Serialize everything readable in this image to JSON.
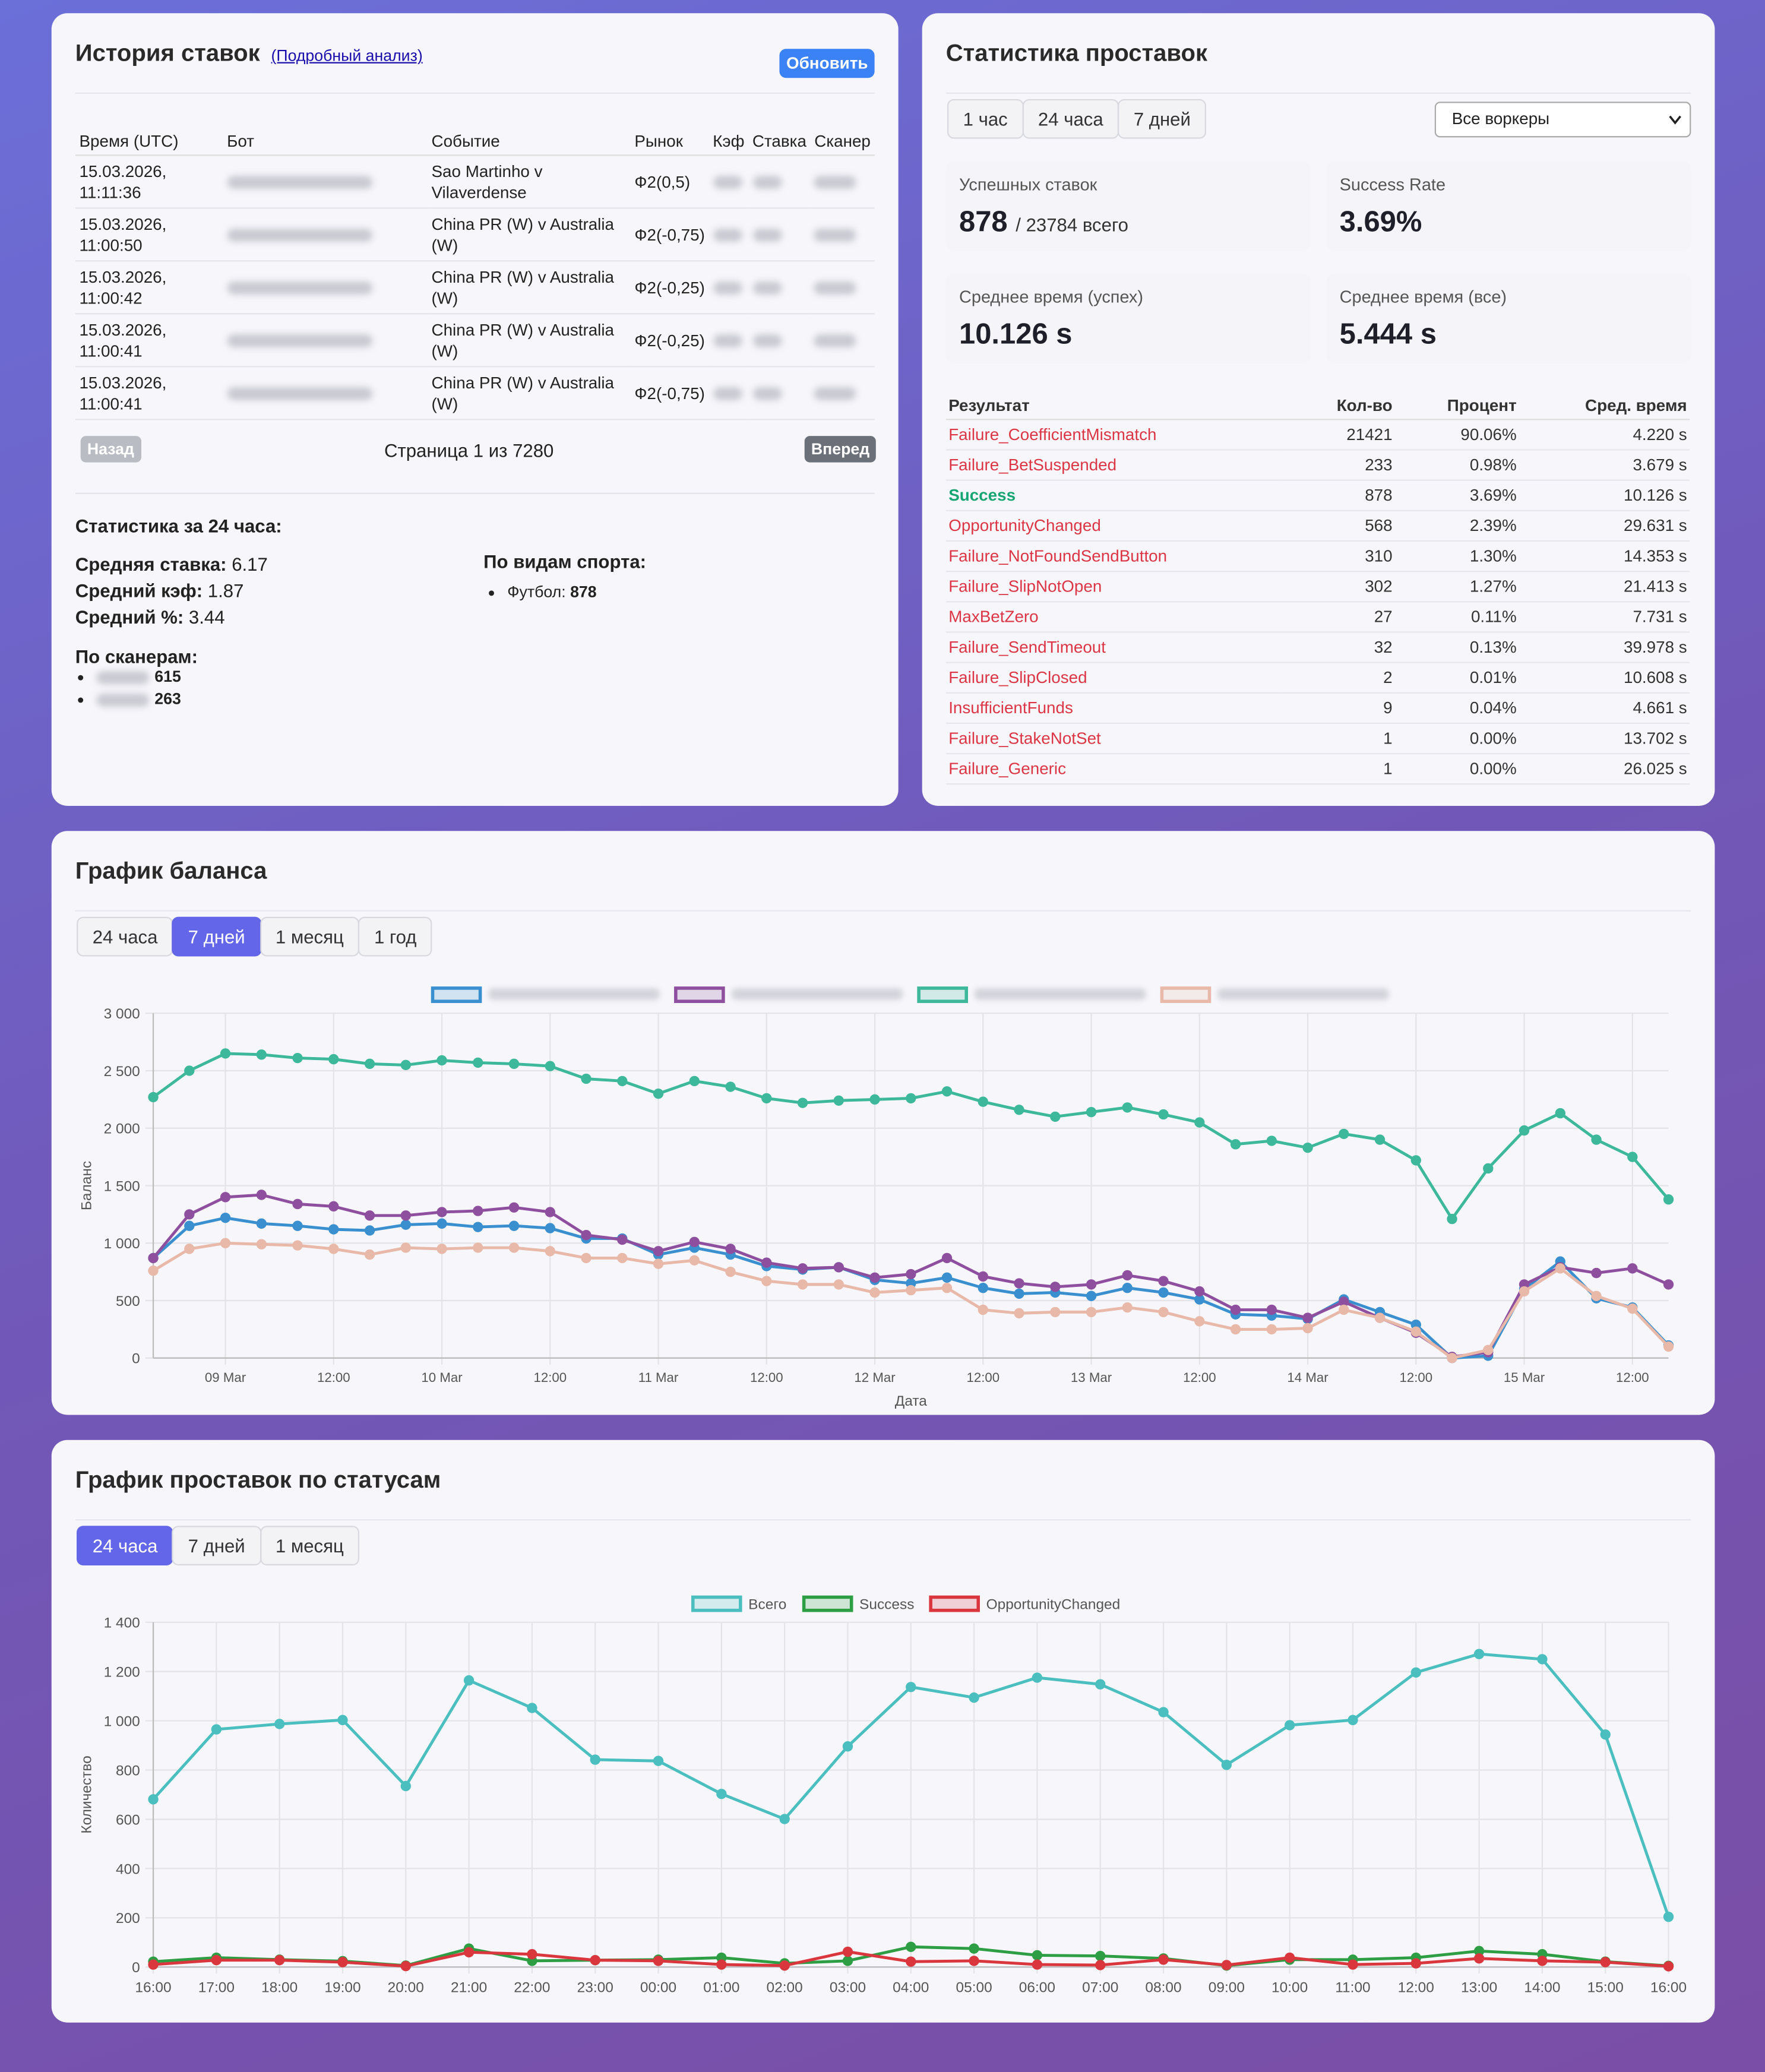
{
  "history": {
    "title": "История ставок",
    "link": "(Подробный анализ)",
    "refresh": "Обновить",
    "columns": [
      "Время (UTC)",
      "Бот",
      "Событие",
      "Рынок",
      "Кэф",
      "Ставка",
      "Сканер"
    ],
    "rows": [
      {
        "time": "15.03.2026, 11:11:36",
        "event": "Sao Martinho v Vilaverdense",
        "market": "Ф2(0,5)"
      },
      {
        "time": "15.03.2026, 11:00:50",
        "event": "China PR (W) v Australia (W)",
        "market": "Ф2(-0,75)"
      },
      {
        "time": "15.03.2026, 11:00:42",
        "event": "China PR (W) v Australia (W)",
        "market": "Ф2(-0,25)"
      },
      {
        "time": "15.03.2026, 11:00:41",
        "event": "China PR (W) v Australia (W)",
        "market": "Ф2(-0,25)"
      },
      {
        "time": "15.03.2026, 11:00:41",
        "event": "China PR (W) v Australia (W)",
        "market": "Ф2(-0,75)"
      }
    ],
    "prev": "Назад",
    "page": "Страница 1 из 7280",
    "next": "Вперед"
  },
  "stats24": {
    "title": "Статистика за 24 часа:",
    "avg_bet_label": "Средняя ставка:",
    "avg_bet": 6.17,
    "avg_coef_label": "Средний кэф:",
    "avg_coef": 1.87,
    "avg_pct_label": "Средний %:",
    "avg_pct": 3.44,
    "scanners_title": "По сканерам:",
    "scanners": [
      615,
      263
    ],
    "sports_title": "По видам спорта:",
    "sports": [
      {
        "name": "Футбол:",
        "count": 878
      }
    ]
  },
  "placement": {
    "title": "Статистика проставок",
    "periods": [
      "1 час",
      "24 часа",
      "7 дней"
    ],
    "worker_select": "Все воркеры",
    "cards": [
      {
        "label": "Успешных ставок",
        "value": 878,
        "sub": "/ 23784 всего"
      },
      {
        "label": "Success Rate",
        "value": "3.69%"
      },
      {
        "label": "Среднее время (успех)",
        "value": "10.126 s"
      },
      {
        "label": "Среднее время (все)",
        "value": "5.444 s"
      }
    ],
    "columns": [
      "Результат",
      "Кол-во",
      "Процент",
      "Сред. время"
    ],
    "rows": [
      {
        "name": "Failure_CoefficientMismatch",
        "count": 21421,
        "percent": "90.06%",
        "time": "4.220 s",
        "color": "#dc3545"
      },
      {
        "name": "Failure_BetSuspended",
        "count": 233,
        "percent": "0.98%",
        "time": "3.679 s",
        "color": "#dc3545"
      },
      {
        "name": "Success",
        "count": 878,
        "percent": "3.69%",
        "time": "10.126 s",
        "color": "#17a673",
        "bold": true
      },
      {
        "name": "OpportunityChanged",
        "count": 568,
        "percent": "2.39%",
        "time": "29.631 s",
        "color": "#dc3545"
      },
      {
        "name": "Failure_NotFoundSendButton",
        "count": 310,
        "percent": "1.30%",
        "time": "14.353 s",
        "color": "#dc3545"
      },
      {
        "name": "Failure_SlipNotOpen",
        "count": 302,
        "percent": "1.27%",
        "time": "21.413 s",
        "color": "#dc3545"
      },
      {
        "name": "MaxBetZero",
        "count": 27,
        "percent": "0.11%",
        "time": "7.731 s",
        "color": "#dc3545"
      },
      {
        "name": "Failure_SendTimeout",
        "count": 32,
        "percent": "0.13%",
        "time": "39.978 s",
        "color": "#dc3545"
      },
      {
        "name": "Failure_SlipClosed",
        "count": 2,
        "percent": "0.01%",
        "time": "10.608 s",
        "color": "#dc3545"
      },
      {
        "name": "InsufficientFunds",
        "count": 9,
        "percent": "0.04%",
        "time": "4.661 s",
        "color": "#dc3545"
      },
      {
        "name": "Failure_StakeNotSet",
        "count": 1,
        "percent": "0.00%",
        "time": "13.702 s",
        "color": "#dc3545"
      },
      {
        "name": "Failure_Generic",
        "count": 1,
        "percent": "0.00%",
        "time": "26.025 s",
        "color": "#dc3545"
      }
    ]
  },
  "chart_data": [
    {
      "type": "line",
      "title": "График баланса",
      "periods": [
        "24 часа",
        "7 дней",
        "1 месяц",
        "1 год"
      ],
      "active_period": 1,
      "x_label": "Дата",
      "y_label": "Баланс",
      "grid": true,
      "x": [
        "08 Mar 16:00",
        "08 Mar 20:00",
        "09 Mar 00:00",
        "09 Mar 04:00",
        "09 Mar 08:00",
        "09 Mar 12:00",
        "09 Mar 16:00",
        "09 Mar 20:00",
        "10 Mar 00:00",
        "10 Mar 04:00",
        "10 Mar 08:00",
        "10 Mar 12:00",
        "10 Mar 16:00",
        "10 Mar 20:00",
        "11 Mar 00:00",
        "11 Mar 04:00",
        "11 Mar 08:00",
        "11 Mar 12:00",
        "11 Mar 16:00",
        "11 Mar 20:00",
        "12 Mar 00:00",
        "12 Mar 04:00",
        "12 Mar 08:00",
        "12 Mar 12:00",
        "12 Mar 16:00",
        "12 Mar 20:00",
        "13 Mar 00:00",
        "13 Mar 04:00",
        "13 Mar 08:00",
        "13 Mar 12:00",
        "13 Mar 16:00",
        "13 Mar 20:00",
        "14 Mar 00:00",
        "14 Mar 04:00",
        "14 Mar 08:00",
        "14 Mar 12:00",
        "14 Mar 16:00",
        "14 Mar 20:00",
        "15 Mar 00:00",
        "15 Mar 04:00",
        "15 Mar 08:00",
        "15 Mar 12:00",
        "15 Mar 16:00"
      ],
      "xticks": [
        {
          "value": "09 Mar 00:00",
          "label": "09 Mar"
        },
        {
          "value": "09 Mar 12:00",
          "label": "12:00"
        },
        {
          "value": "10 Mar 00:00",
          "label": "10 Mar"
        },
        {
          "value": "10 Mar 12:00",
          "label": "12:00"
        },
        {
          "value": "11 Mar 00:00",
          "label": "11 Mar"
        },
        {
          "value": "11 Mar 12:00",
          "label": "12:00"
        },
        {
          "value": "12 Mar 00:00",
          "label": "12 Mar"
        },
        {
          "value": "12 Mar 12:00",
          "label": "12:00"
        },
        {
          "value": "13 Mar 00:00",
          "label": "13 Mar"
        },
        {
          "value": "13 Mar 12:00",
          "label": "12:00"
        },
        {
          "value": "14 Mar 00:00",
          "label": "14 Mar"
        },
        {
          "value": "14 Mar 12:00",
          "label": "12:00"
        },
        {
          "value": "15 Mar 00:00",
          "label": "15 Mar"
        },
        {
          "value": "15 Mar 12:00",
          "label": "12:00"
        }
      ],
      "ylim": [
        0,
        3000
      ],
      "yticks": [
        0,
        500,
        {
          "value": 1000,
          "label": "1 000"
        },
        {
          "value": 1500,
          "label": "1 500"
        },
        {
          "value": 2000,
          "label": "2 000"
        },
        {
          "value": 2500,
          "label": "2 500"
        },
        {
          "value": 3000,
          "label": "3 000"
        }
      ],
      "series": [
        {
          "color": "#3a8fcf",
          "values": [
            870,
            1150,
            1220,
            1170,
            1150,
            1120,
            1110,
            1160,
            1170,
            1140,
            1150,
            1130,
            1040,
            1040,
            900,
            960,
            900,
            800,
            770,
            790,
            680,
            650,
            700,
            610,
            560,
            570,
            540,
            610,
            570,
            510,
            380,
            370,
            340,
            510,
            400,
            290,
            0,
            20,
            600,
            840,
            520,
            440,
            110
          ]
        },
        {
          "color": "#8e4f9f",
          "values": [
            870,
            1250,
            1400,
            1420,
            1340,
            1320,
            1240,
            1240,
            1270,
            1280,
            1310,
            1270,
            1070,
            1030,
            930,
            1010,
            950,
            830,
            780,
            790,
            700,
            730,
            870,
            710,
            650,
            620,
            640,
            720,
            670,
            580,
            420,
            420,
            350,
            490,
            350,
            220,
            10,
            50,
            640,
            790,
            740,
            780,
            640
          ]
        },
        {
          "color": "#3db89a",
          "values": [
            2270,
            2500,
            2650,
            2640,
            2610,
            2600,
            2560,
            2550,
            2590,
            2570,
            2560,
            2540,
            2430,
            2410,
            2300,
            2410,
            2360,
            2260,
            2220,
            2240,
            2250,
            2260,
            2320,
            2230,
            2160,
            2100,
            2140,
            2180,
            2120,
            2050,
            1860,
            1890,
            1830,
            1950,
            1900,
            1720,
            1210,
            1650,
            1980,
            2130,
            1900,
            1750,
            1380
          ]
        },
        {
          "color": "#e8b8a8",
          "values": [
            760,
            950,
            1000,
            990,
            980,
            950,
            900,
            960,
            950,
            960,
            960,
            930,
            870,
            870,
            820,
            850,
            750,
            670,
            640,
            640,
            570,
            590,
            610,
            420,
            390,
            400,
            400,
            440,
            400,
            320,
            250,
            250,
            260,
            420,
            350,
            230,
            0,
            70,
            580,
            780,
            540,
            430,
            100
          ]
        }
      ]
    },
    {
      "type": "line",
      "title": "График проставок по статусам",
      "periods": [
        "24 часа",
        "7 дней",
        "1 месяц"
      ],
      "active_period": 0,
      "y_label": "Количество",
      "grid": true,
      "categories": [
        "16:00",
        "17:00",
        "18:00",
        "19:00",
        "20:00",
        "21:00",
        "22:00",
        "23:00",
        "00:00",
        "01:00",
        "02:00",
        "03:00",
        "04:00",
        "05:00",
        "06:00",
        "07:00",
        "08:00",
        "09:00",
        "10:00",
        "11:00",
        "12:00",
        "13:00",
        "14:00",
        "15:00",
        "16:00"
      ],
      "ylim": [
        0,
        1400
      ],
      "yticks": [
        0,
        200,
        400,
        600,
        800,
        {
          "value": 1000,
          "label": "1 000"
        },
        {
          "value": 1200,
          "label": "1 200"
        },
        {
          "value": 1400,
          "label": "1 400"
        }
      ],
      "series": [
        {
          "name": "Всего",
          "color": "#4bbfbf",
          "values": [
            681,
            965,
            987,
            1003,
            735,
            1164,
            1052,
            842,
            837,
            703,
            601,
            896,
            1137,
            1094,
            1175,
            1148,
            1035,
            821,
            982,
            1003,
            1196,
            1271,
            1250,
            944,
            204
          ]
        },
        {
          "name": "Success",
          "color": "#2e9e44",
          "values": [
            22,
            38,
            30,
            24,
            6,
            75,
            25,
            28,
            30,
            38,
            15,
            25,
            82,
            75,
            48,
            45,
            35,
            6,
            30,
            30,
            38,
            65,
            52,
            22,
            5
          ]
        },
        {
          "name": "OpportunityChanged",
          "color": "#d9363e",
          "values": [
            10,
            28,
            28,
            20,
            4,
            60,
            52,
            28,
            25,
            10,
            6,
            62,
            22,
            25,
            10,
            8,
            30,
            8,
            38,
            10,
            15,
            35,
            25,
            20,
            3
          ]
        }
      ]
    }
  ]
}
